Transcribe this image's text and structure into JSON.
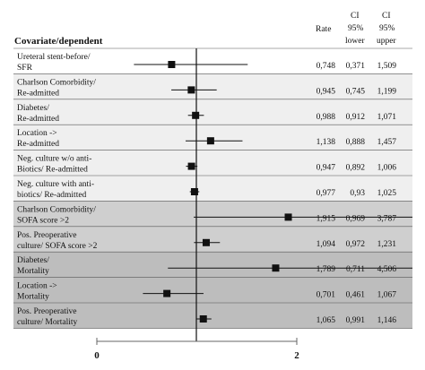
{
  "chart_data": {
    "type": "forest",
    "title": "",
    "header": {
      "covariate": "Covariate/dependent",
      "rate": "Rate",
      "ci_lower": [
        "CI",
        "95%",
        "lower"
      ],
      "ci_upper": [
        "CI",
        "95%",
        "upper"
      ]
    },
    "x_axis": {
      "ticks": [
        0,
        2
      ],
      "tick_labels": [
        "0",
        "2"
      ],
      "reference_line": 1
    },
    "rows": [
      {
        "label": [
          "Ureteral stent-before/",
          "SFR"
        ],
        "rate": 0.748,
        "lower": 0.371,
        "upper": 1.509,
        "rate_text": "0,748",
        "lower_text": "0,371",
        "upper_text": "1,509",
        "shade": "white"
      },
      {
        "label": [
          "Charlson Comorbidity/",
          "Re-admitted"
        ],
        "rate": 0.945,
        "lower": 0.745,
        "upper": 1.199,
        "rate_text": "0,945",
        "lower_text": "0,745",
        "upper_text": "1,199",
        "shade": "light"
      },
      {
        "label": [
          "Diabetes/",
          "Re-admitted"
        ],
        "rate": 0.988,
        "lower": 0.912,
        "upper": 1.071,
        "rate_text": "0,988",
        "lower_text": "0,912",
        "upper_text": "1,071",
        "shade": "light"
      },
      {
        "label": [
          "Location ->",
          "Re-admitted"
        ],
        "rate": 1.138,
        "lower": 0.888,
        "upper": 1.457,
        "rate_text": "1,138",
        "lower_text": "0,888",
        "upper_text": "1,457",
        "shade": "light"
      },
      {
        "label": [
          "Neg. culture w/o anti-",
          "Biotics/ Re-admitted"
        ],
        "rate": 0.947,
        "lower": 0.892,
        "upper": 1.006,
        "rate_text": "0,947",
        "lower_text": "0,892",
        "upper_text": "1,006",
        "shade": "light"
      },
      {
        "label": [
          "Neg. culture with anti-",
          "biotics/ Re-admitted"
        ],
        "rate": 0.977,
        "lower": 0.93,
        "upper": 1.025,
        "rate_text": "0,977",
        "lower_text": "0,93",
        "upper_text": "1,025",
        "shade": "light"
      },
      {
        "label": [
          "Charlson Comorbidity/",
          "SOFA score >2"
        ],
        "rate": 1.915,
        "lower": 0.969,
        "upper": 3.787,
        "rate_text": "1,915",
        "lower_text": "0,969",
        "upper_text": "3,787",
        "shade": "mid"
      },
      {
        "label": [
          "Pos. Preoperative",
          "culture/ SOFA score >2"
        ],
        "rate": 1.094,
        "lower": 0.972,
        "upper": 1.231,
        "rate_text": "1,094",
        "lower_text": "0,972",
        "upper_text": "1,231",
        "shade": "mid"
      },
      {
        "label": [
          "Diabetes/",
          "Mortality"
        ],
        "rate": 1.789,
        "lower": 0.711,
        "upper": 4.506,
        "rate_text": "1,789",
        "lower_text": "0,711",
        "upper_text": "4,506",
        "shade": "dark"
      },
      {
        "label": [
          "Location ->",
          "Mortality"
        ],
        "rate": 0.701,
        "lower": 0.461,
        "upper": 1.067,
        "rate_text": "0,701",
        "lower_text": "0,461",
        "upper_text": "1,067",
        "shade": "dark"
      },
      {
        "label": [
          "Pos. Preoperative",
          "culture/ Mortality"
        ],
        "rate": 1.065,
        "lower": 0.991,
        "upper": 1.146,
        "rate_text": "1,065",
        "lower_text": "0,991",
        "upper_text": "1,146",
        "shade": "dark"
      }
    ],
    "colors": {
      "light": "#efefef",
      "mid": "#cfcfcf",
      "dark": "#bdbdbd",
      "marker": "#111111"
    }
  }
}
